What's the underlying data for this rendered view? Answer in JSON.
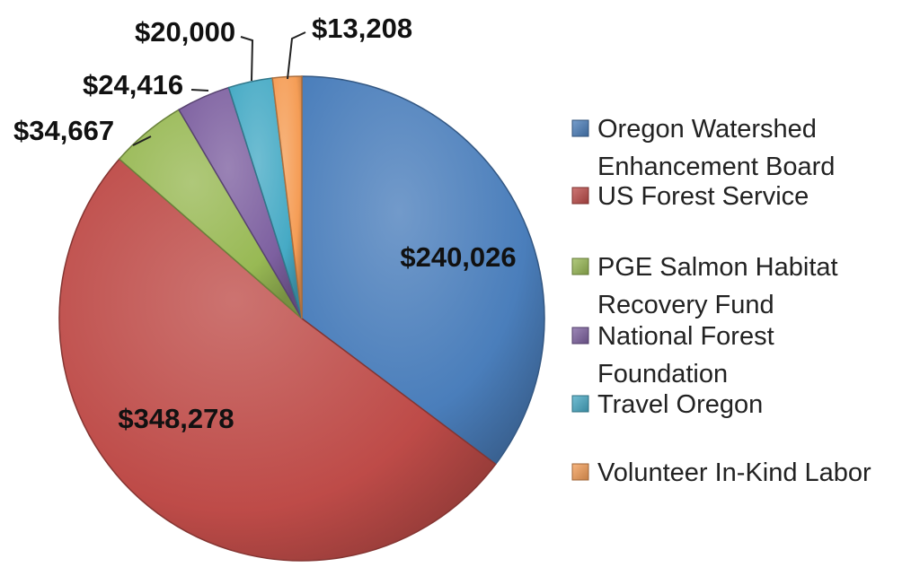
{
  "chart_data": {
    "type": "pie",
    "title": "",
    "start_angle_deg": 0,
    "direction": "clockwise",
    "slices": [
      {
        "label": "Oregon Watershed Enhancement Board",
        "legend_lines": [
          "Oregon Watershed",
          "Enhancement Board"
        ],
        "value": 240026,
        "value_label": "$240,026",
        "color": "#4a7ebb"
      },
      {
        "label": "US Forest Service",
        "legend_lines": [
          "US Forest Service"
        ],
        "value": 348278,
        "value_label": "$348,278",
        "color": "#be4b48"
      },
      {
        "label": "PGE Salmon Habitat Recovery Fund",
        "legend_lines": [
          "PGE Salmon Habitat",
          "Recovery Fund"
        ],
        "value": 34667,
        "value_label": "$34,667",
        "color": "#98b954"
      },
      {
        "label": "National Forest Foundation",
        "legend_lines": [
          "National Forest",
          "Foundation"
        ],
        "value": 24416,
        "value_label": "$24,416",
        "color": "#7d60a0"
      },
      {
        "label": "Travel Oregon",
        "legend_lines": [
          "Travel Oregon"
        ],
        "value": 20000,
        "value_label": "$20,000",
        "color": "#46aac5"
      },
      {
        "label": "Volunteer In-Kind Labor",
        "legend_lines": [
          "Volunteer In-Kind Labor"
        ],
        "value": 13208,
        "value_label": "$13,208",
        "color": "#f59d56"
      }
    ],
    "legend_position": "right"
  }
}
